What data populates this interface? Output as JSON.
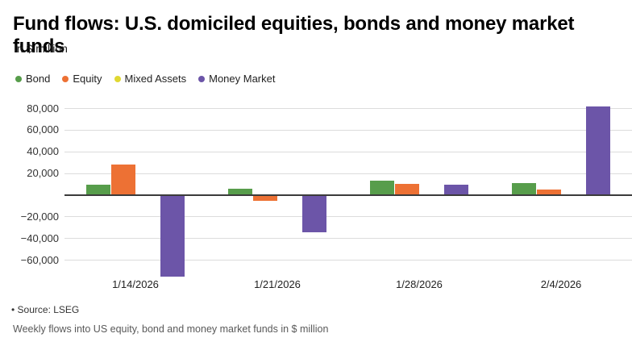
{
  "header": {
    "title": "Fund flows: U.S. domiciled equities, bonds and money market funds",
    "subtitle": "In $ million"
  },
  "legend": {
    "items": [
      {
        "label": "Bond",
        "color": "#579d4b"
      },
      {
        "label": "Equity",
        "color": "#ed7134"
      },
      {
        "label": "Mixed Assets",
        "color": "#e0d832"
      },
      {
        "label": "Money Market",
        "color": "#6c55a8"
      }
    ]
  },
  "chart_data": {
    "type": "bar",
    "title": "Fund flows: U.S. domiciled equities, bonds and money market funds",
    "subtitle": "In $ million",
    "categories": [
      "1/14/2026",
      "1/21/2026",
      "1/28/2026",
      "2/4/2026"
    ],
    "series": [
      {
        "name": "Bond",
        "color": "#579d4b",
        "values": [
          10000,
          6000,
          13500,
          11000
        ]
      },
      {
        "name": "Equity",
        "color": "#ed7134",
        "values": [
          28000,
          -5500,
          10500,
          5500
        ]
      },
      {
        "name": "Mixed Assets",
        "color": "#e0d832",
        "values": [
          500,
          400,
          300,
          300
        ]
      },
      {
        "name": "Money Market",
        "color": "#6c55a8",
        "values": [
          -75000,
          -34000,
          10000,
          82000
        ]
      }
    ],
    "ylim": [
      -80000,
      90000
    ],
    "yticks": [
      80000,
      60000,
      40000,
      20000,
      -20000,
      -40000,
      -60000
    ],
    "ytick_labels": [
      "80,000",
      "60,000",
      "40,000",
      "20,000",
      "−20,000",
      "−40,000",
      "−60,000"
    ],
    "grid": "horizontal",
    "legend_position": "top",
    "axis_color": "#3b3b3b",
    "gridline_color": "#dcdcdc"
  },
  "footer": {
    "source_bullet": "•",
    "source": "Source: LSEG",
    "caption": "Weekly flows into US equity, bond and money market funds in $ million"
  }
}
